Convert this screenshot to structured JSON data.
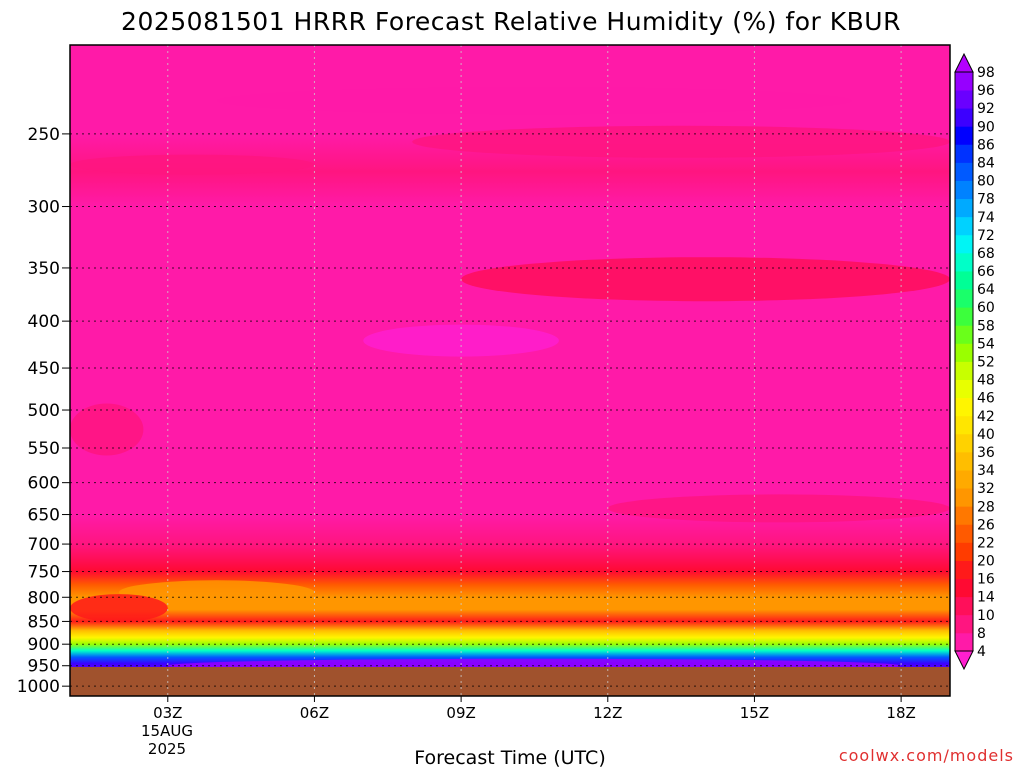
{
  "chart_data": {
    "type": "heatmap",
    "title": "2025081501 HRRR Forecast Relative Humidity (%) for KBUR",
    "xlabel": "Forecast Time (UTC)",
    "credit": "coolwx.com/models",
    "x_ticks": [
      "03Z",
      "06Z",
      "09Z",
      "12Z",
      "15Z",
      "18Z"
    ],
    "x_first_tick_date": [
      "15AUG",
      "2025"
    ],
    "xlim_hours": [
      1,
      19
    ],
    "y_ticks": [
      250,
      300,
      350,
      400,
      450,
      500,
      550,
      600,
      650,
      700,
      750,
      800,
      850,
      900,
      950,
      1000
    ],
    "ylim_hPa": [
      200,
      1025
    ],
    "y_scale": "log-pressure (inverted)",
    "grid": true,
    "terrain_below_hPa": 975,
    "colorbar": {
      "labels": [
        4,
        8,
        10,
        14,
        16,
        20,
        22,
        26,
        28,
        32,
        34,
        36,
        40,
        42,
        46,
        48,
        52,
        54,
        58,
        60,
        64,
        66,
        68,
        72,
        74,
        78,
        80,
        84,
        86,
        90,
        92,
        96,
        98
      ],
      "colors": [
        "#ff1fcf",
        "#ff1aa8",
        "#ff1580",
        "#ff0f5a",
        "#ff0a32",
        "#ff1a1a",
        "#ff3c00",
        "#ff5a00",
        "#ff7800",
        "#ff9600",
        "#ffaa00",
        "#ffbe00",
        "#ffd200",
        "#ffe600",
        "#fff500",
        "#e8ff00",
        "#c8ff00",
        "#9aff00",
        "#6aff1a",
        "#3cff3c",
        "#1aff6a",
        "#00ff96",
        "#00ffc8",
        "#00f5f5",
        "#00d2ff",
        "#00aaff",
        "#0082ff",
        "#005aff",
        "#0032ff",
        "#0000ff",
        "#3c00ff",
        "#6a00ff",
        "#9600ff",
        "#b400ff"
      ]
    },
    "levels_rh": [
      {
        "p": 200,
        "rh": 6
      },
      {
        "p": 250,
        "rh": 7
      },
      {
        "p": 275,
        "rh": 9
      },
      {
        "p": 300,
        "rh": 7
      },
      {
        "p": 350,
        "rh": 8
      },
      {
        "p": 400,
        "rh": 7
      },
      {
        "p": 450,
        "rh": 5
      },
      {
        "p": 500,
        "rh": 6
      },
      {
        "p": 550,
        "rh": 6
      },
      {
        "p": 600,
        "rh": 6
      },
      {
        "p": 650,
        "rh": 7
      },
      {
        "p": 700,
        "rh": 9
      },
      {
        "p": 725,
        "rh": 12
      },
      {
        "p": 750,
        "rh": 16
      },
      {
        "p": 775,
        "rh": 24
      },
      {
        "p": 800,
        "rh": 30
      },
      {
        "p": 825,
        "rh": 30
      },
      {
        "p": 850,
        "rh": 18
      },
      {
        "p": 870,
        "rh": 36
      },
      {
        "p": 885,
        "rh": 44
      },
      {
        "p": 900,
        "rh": 54
      },
      {
        "p": 915,
        "rh": 68
      },
      {
        "p": 930,
        "rh": 84
      },
      {
        "p": 945,
        "rh": 92
      },
      {
        "p": 960,
        "rh": 96
      },
      {
        "p": 975,
        "rh": 98
      }
    ]
  }
}
